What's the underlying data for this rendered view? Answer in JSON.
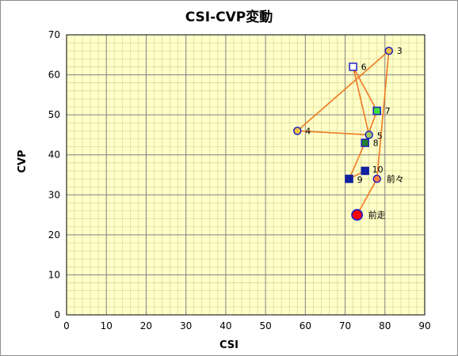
{
  "chart_data": {
    "type": "scatter",
    "title": "CSI-CVP変動",
    "xlabel": "CSI",
    "ylabel": "CVP",
    "xlim": [
      0,
      90
    ],
    "ylim": [
      0,
      70
    ],
    "xticks": [
      0,
      10,
      20,
      30,
      40,
      50,
      60,
      70,
      80,
      90
    ],
    "yticks": [
      0,
      10,
      20,
      30,
      40,
      50,
      60,
      70
    ],
    "minor_x_step": 2,
    "minor_y_step": 2,
    "grid": true,
    "plot_background": "#ffffc8",
    "minor_grid_color": "#dcdc9c",
    "major_grid_color": "#808080",
    "line_color": "#f07820",
    "points": [
      {
        "label": "前走",
        "x": 73,
        "y": 25,
        "shape": "circle-large",
        "fill": "#ff0000",
        "stroke": "#2020c0"
      },
      {
        "label": "前々",
        "x": 78,
        "y": 34,
        "shape": "circle",
        "fill": "#ff8040",
        "stroke": "#2020c0"
      },
      {
        "label": "3",
        "x": 81,
        "y": 66,
        "shape": "circle",
        "fill": "#f0c040",
        "stroke": "#2020c0"
      },
      {
        "label": "4",
        "x": 58,
        "y": 46,
        "shape": "circle",
        "fill": "#f0c040",
        "stroke": "#2020c0"
      },
      {
        "label": "5",
        "x": 76,
        "y": 45,
        "shape": "circle",
        "fill": "#a0c860",
        "stroke": "#2020c0"
      },
      {
        "label": "6",
        "x": 72,
        "y": 62,
        "shape": "square",
        "fill": "#ffffff",
        "stroke": "#2020c0"
      },
      {
        "label": "7",
        "x": 78,
        "y": 51,
        "shape": "square",
        "fill": "#40e040",
        "stroke": "#2020c0"
      },
      {
        "label": "8",
        "x": 75,
        "y": 43,
        "shape": "square",
        "fill": "#208030",
        "stroke": "#2020c0"
      },
      {
        "label": "9",
        "x": 71,
        "y": 34,
        "shape": "square",
        "fill": "#1020a0",
        "stroke": "#1020a0"
      },
      {
        "label": "10",
        "x": 75,
        "y": 36,
        "shape": "square",
        "fill": "#1020a0",
        "stroke": "#1020a0"
      }
    ],
    "path_order": [
      "前走",
      "前々",
      "3",
      "4",
      "5",
      "6",
      "7",
      "8",
      "9",
      "10"
    ]
  }
}
